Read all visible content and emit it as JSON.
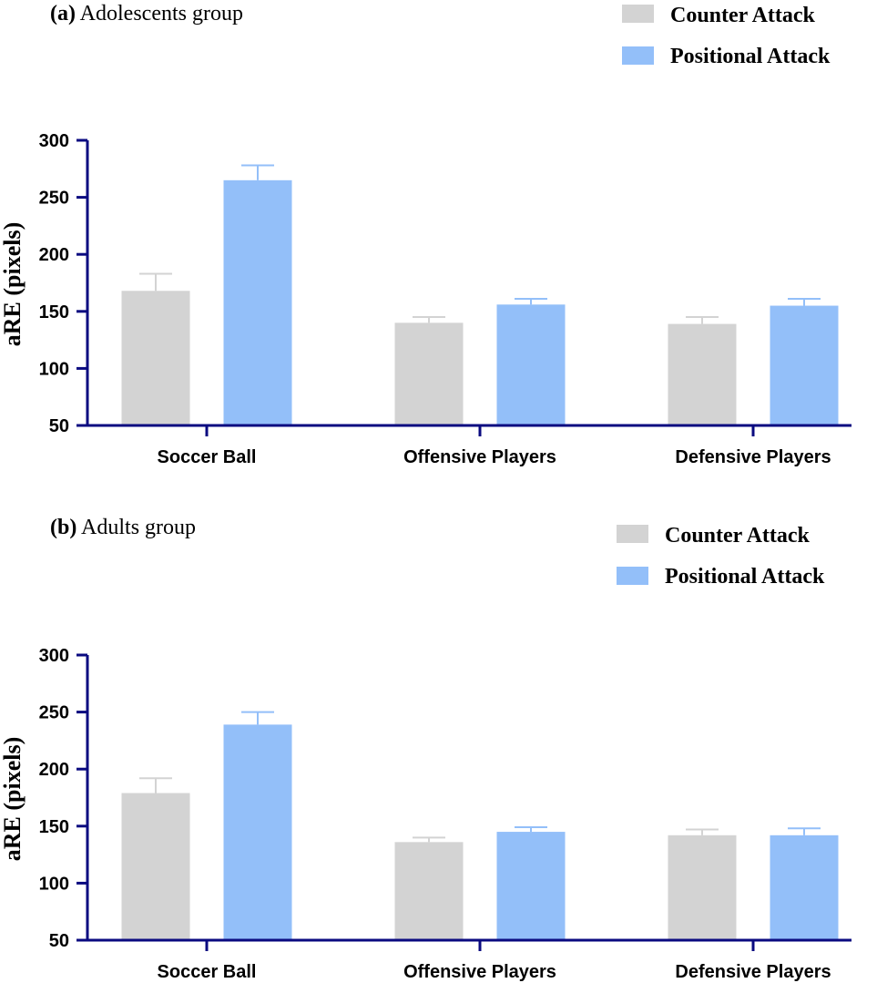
{
  "colors": {
    "axis": "#0a0a80",
    "counter": "#d3d3d3",
    "positional": "#93bff9"
  },
  "chart_data": [
    {
      "type": "bar",
      "panel_letter": "(a)",
      "title": "Adolescents group",
      "ylabel": "aRE (pixels)",
      "xlabel": "",
      "ylim": [
        50,
        300
      ],
      "yticks": [
        50,
        100,
        150,
        200,
        250,
        300
      ],
      "categories": [
        "Soccer Ball",
        "Offensive Players",
        "Defensive Players"
      ],
      "legend_position": "top-right",
      "series": [
        {
          "name": "Counter Attack",
          "values": [
            168,
            140,
            139
          ],
          "errors": [
            15,
            5,
            6
          ]
        },
        {
          "name": "Positional Attack",
          "values": [
            265,
            156,
            155
          ],
          "errors": [
            13,
            5,
            6
          ]
        }
      ]
    },
    {
      "type": "bar",
      "panel_letter": "(b)",
      "title": "Adults group",
      "ylabel": "aRE (pixels)",
      "xlabel": "",
      "ylim": [
        50,
        300
      ],
      "yticks": [
        50,
        100,
        150,
        200,
        250,
        300
      ],
      "categories": [
        "Soccer Ball",
        "Offensive Players",
        "Defensive Players"
      ],
      "legend_position": "top-right",
      "series": [
        {
          "name": "Counter Attack",
          "values": [
            179,
            136,
            142
          ],
          "errors": [
            13,
            4,
            5
          ]
        },
        {
          "name": "Positional Attack",
          "values": [
            239,
            145,
            142
          ],
          "errors": [
            11,
            4,
            6
          ]
        }
      ]
    }
  ]
}
